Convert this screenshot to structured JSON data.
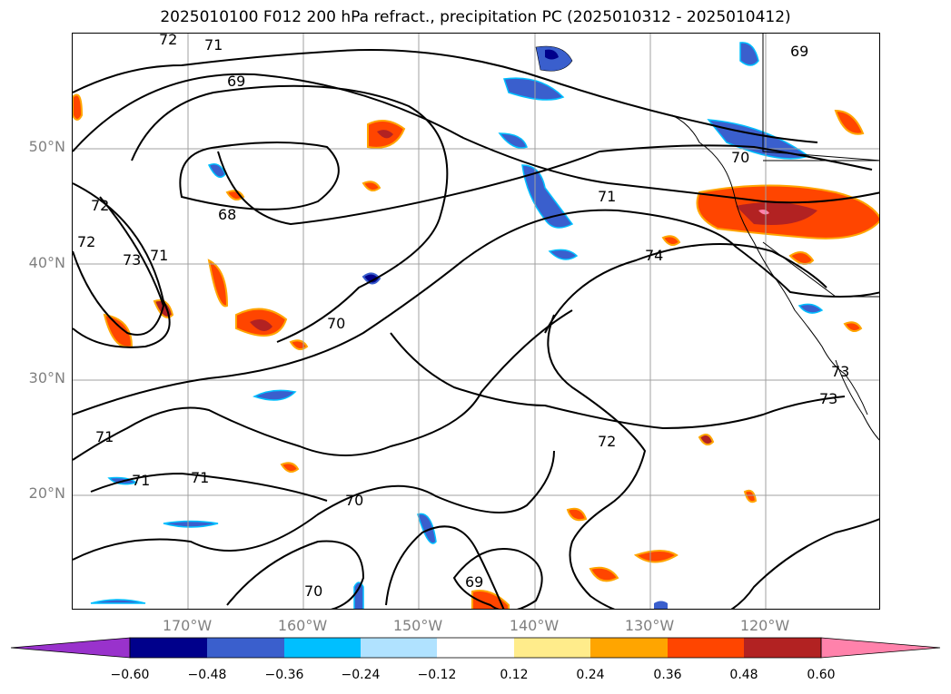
{
  "title": "2025010100 F012 200 hPa refract., precipitation PC (2025010312 - 2025010412)",
  "lat_labels": [
    "50°N",
    "40°N",
    "30°N",
    "20°N"
  ],
  "lon_labels": [
    "170°W",
    "160°W",
    "150°W",
    "140°W",
    "130°W",
    "120°W"
  ],
  "colorbar": {
    "tick_labels": [
      "−0.60",
      "−0.48",
      "−0.36",
      "−0.24",
      "−0.12",
      "0.12",
      "0.24",
      "0.36",
      "0.48",
      "0.60"
    ],
    "colors": [
      "#9932cc",
      "#00008b",
      "#3a5fcd",
      "#00bfff",
      "#b0e2ff",
      "#ffffff",
      "#ffec8b",
      "#ffa500",
      "#ff4500",
      "#b22222",
      "#ff82ab"
    ]
  },
  "contour_labels": [
    "72",
    "71",
    "69",
    "68",
    "72",
    "73",
    "71",
    "72",
    "70",
    "71",
    "74",
    "70",
    "69",
    "72",
    "71",
    "71",
    "71",
    "70",
    "70",
    "69",
    "73",
    "73"
  ]
}
